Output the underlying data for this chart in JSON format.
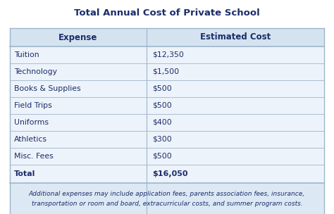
{
  "title": "Total Annual Cost of Private School",
  "col_headers": [
    "Expense",
    "Estimated Cost"
  ],
  "rows": [
    [
      "Tuition",
      "$12,350"
    ],
    [
      "Technology",
      "$1,500"
    ],
    [
      "Books & Supplies",
      "$500"
    ],
    [
      "Field Trips",
      "$500"
    ],
    [
      "Uniforms",
      "$400"
    ],
    [
      "Athletics",
      "$300"
    ],
    [
      "Misc. Fees",
      "$500"
    ],
    [
      "Total",
      "$16,050"
    ]
  ],
  "footer_line1": "Additional expenses may include application fees, parents association fees, insurance,",
  "footer_line2": "transportation or room and board, extracurricular costs, and summer program costs.",
  "title_color": "#1b2d6b",
  "header_bg": "#d5e3f0",
  "header_text_color": "#1b2d6b",
  "row_bg": "#edf3fa",
  "total_bg": "#edf3fa",
  "cell_text_color": "#1b2d6b",
  "footer_bg": "#dce9f5",
  "border_color": "#9db5cc",
  "col_split": 0.435,
  "background_color": "#ffffff"
}
